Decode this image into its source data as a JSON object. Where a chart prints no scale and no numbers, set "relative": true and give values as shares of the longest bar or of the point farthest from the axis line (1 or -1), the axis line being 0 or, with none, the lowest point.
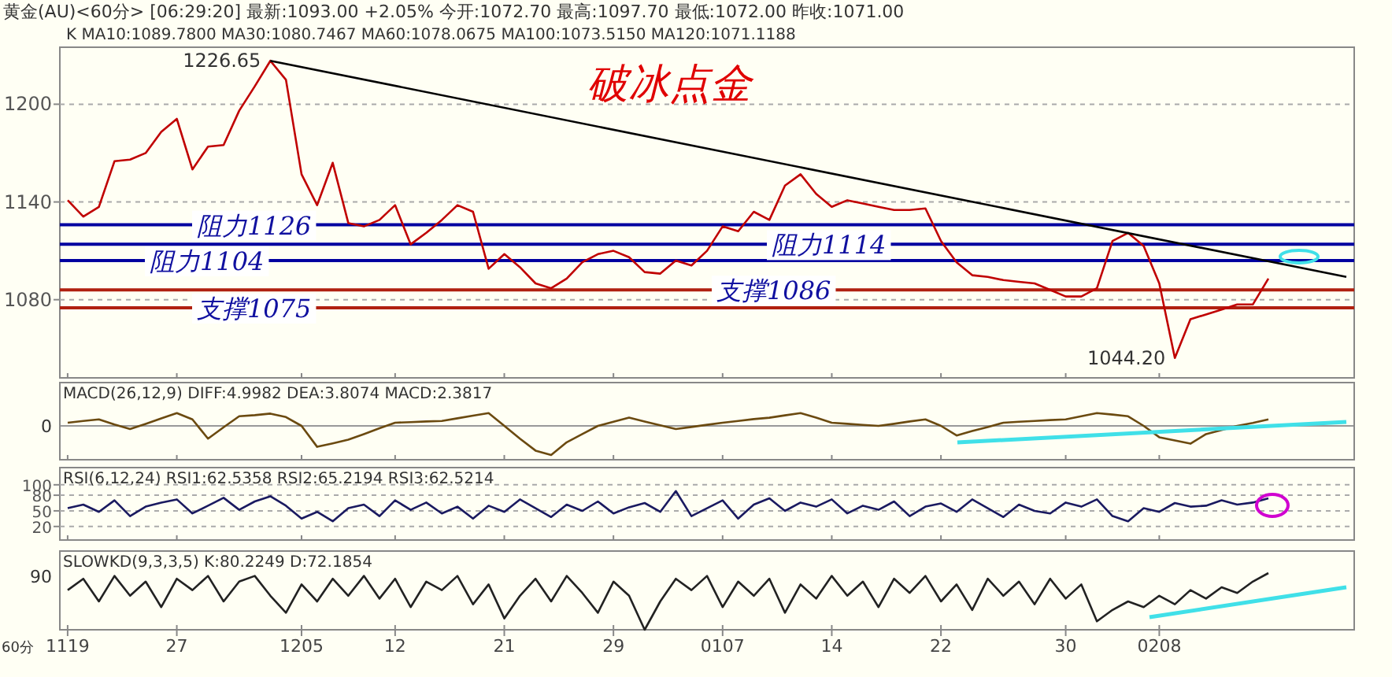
{
  "chart_data": [
    {
      "type": "line",
      "title": "破冰点金",
      "subtitle": "黄金(AU)<60分>     [06:29:20] 最新:1093.00 +2.05%  今开:1072.70  最高:1097.70  最低:1072.00  昨收:1071.00",
      "annotations": [
        "K  MA10:1089.7800  MA30:1080.7467  MA60:1078.0675  MA100:1073.5150  MA120:1071.1188",
        "1226.65",
        "1044.20"
      ],
      "categories": [
        "1119",
        null,
        null,
        null,
        null,
        null,
        null,
        "27",
        null,
        null,
        null,
        null,
        null,
        null,
        null,
        "1205",
        null,
        null,
        null,
        null,
        null,
        "12",
        null,
        null,
        null,
        null,
        null,
        null,
        "21",
        null,
        null,
        null,
        null,
        null,
        null,
        "29",
        null,
        null,
        null,
        null,
        null,
        null,
        "0107",
        null,
        null,
        null,
        null,
        null,
        null,
        "14",
        null,
        null,
        null,
        null,
        null,
        null,
        "22",
        null,
        null,
        null,
        null,
        null,
        null,
        null,
        "30",
        null,
        null,
        null,
        null,
        null,
        "0208",
        null,
        null,
        null,
        null,
        null,
        null,
        null,
        null,
        null,
        null,
        null,
        null
      ],
      "ylim": [
        1032,
        1235
      ],
      "yticks": [
        1080,
        1140,
        1200
      ],
      "grid": "y",
      "tick_labels": "y",
      "series": [
        {
          "color": "#c00000",
          "values": [
            1141,
            1131,
            1137,
            1165,
            1166,
            1170,
            1183,
            1191,
            1160,
            1174,
            1175,
            1196,
            1211,
            1226.65,
            1215,
            1157,
            1138,
            1164,
            1127,
            1125,
            1129,
            1138,
            1114,
            1121,
            1129,
            1138,
            1134,
            1099,
            1108,
            1100,
            1090,
            1087,
            1093,
            1103,
            1108,
            1110,
            1106,
            1097,
            1096,
            1104,
            1101,
            1110,
            1125,
            1122,
            1134,
            1129,
            1150,
            1157,
            1145,
            1137,
            1141,
            1139,
            1137,
            1135,
            1135,
            1136,
            1116,
            1103,
            1095,
            1094,
            1092,
            1091,
            1090,
            1086,
            1082,
            1082,
            1087,
            1116,
            1121,
            1113,
            1090,
            1044.2,
            1068,
            1071,
            1074,
            1077,
            1077,
            1093,
            null,
            null,
            null,
            null,
            null
          ]
        },
        {
          "color": "#000000",
          "values": [
            null,
            null,
            null,
            null,
            null,
            null,
            null,
            null,
            null,
            null,
            null,
            null,
            null,
            1226.65,
            null,
            null,
            null,
            null,
            null,
            null,
            null,
            null,
            null,
            null,
            null,
            null,
            null,
            null,
            null,
            null,
            null,
            null,
            null,
            null,
            null,
            null,
            null,
            null,
            null,
            null,
            null,
            null,
            null,
            null,
            null,
            null,
            null,
            null,
            null,
            null,
            null,
            null,
            null,
            null,
            null,
            null,
            null,
            null,
            null,
            null,
            null,
            null,
            null,
            null,
            null,
            null,
            null,
            null,
            null,
            null,
            null,
            null,
            null,
            null,
            null,
            null,
            null,
            null,
            null,
            null,
            null,
            null,
            1094
          ]
        }
      ],
      "ref_lines": [
        {
          "axis": "y",
          "value": 1126,
          "label": "阻力1126",
          "color": "#0000a0"
        },
        {
          "axis": "y",
          "value": 1104,
          "label": "阻力1104",
          "color": "#0000a0"
        },
        {
          "axis": "y",
          "value": 1075,
          "label": "支撑1075",
          "color": "#b02010"
        },
        {
          "axis": "y",
          "value": 1114,
          "label": "阻力1114",
          "color": "#0000a0"
        },
        {
          "axis": "y",
          "value": 1086,
          "label": "支撑1086",
          "color": "#b02010"
        }
      ]
    },
    {
      "type": "line",
      "title": "MACD(26,12,9)  DIFF:4.9982  DEA:3.8074  MACD:2.3817",
      "relative": true,
      "tick_labels": false,
      "annotations": [
        "0"
      ],
      "categories": [
        "1119",
        null,
        null,
        null,
        null,
        null,
        null,
        "27",
        null,
        null,
        null,
        null,
        null,
        null,
        null,
        "1205",
        null,
        null,
        null,
        null,
        null,
        "12",
        null,
        null,
        null,
        null,
        null,
        null,
        "21",
        null,
        null,
        null,
        null,
        null,
        null,
        "29",
        null,
        null,
        null,
        null,
        null,
        null,
        "0107",
        null,
        null,
        null,
        null,
        null,
        null,
        "14",
        null,
        null,
        null,
        null,
        null,
        null,
        "22",
        null,
        null,
        null,
        null,
        null,
        null,
        null,
        "30",
        null,
        null,
        null,
        null,
        null,
        "0208",
        null,
        null,
        null,
        null,
        null,
        null,
        null,
        null,
        null,
        null,
        null,
        null
      ],
      "series": [
        {
          "color": "#6b4a10",
          "values": [
            0.11,
            0.17,
            0.22,
            0.05,
            -0.11,
            0.07,
            0.26,
            0.44,
            0.22,
            -0.44,
            -0.05,
            0.33,
            0.37,
            0.42,
            0.3,
            0,
            -0.72,
            -0.6,
            -0.47,
            -0.28,
            -0.08,
            0.11,
            0.13,
            0.15,
            0.17,
            0.26,
            0.35,
            0.44,
            0,
            -0.44,
            -0.85,
            -1,
            -0.56,
            -0.28,
            0,
            0.14,
            0.28,
            0.15,
            0.02,
            -0.11,
            -0.04,
            0.04,
            0.11,
            0.17,
            0.23,
            0.28,
            0.36,
            0.44,
            0.28,
            0.11,
            0.07,
            0.03,
            0,
            0.07,
            0.15,
            0.22,
            0,
            -0.33,
            -0.18,
            -0.04,
            0.11,
            0.14,
            0.17,
            0.2,
            0.22,
            0.33,
            0.44,
            0.39,
            0.33,
            0,
            -0.39,
            -0.5,
            -0.61,
            -0.28,
            -0.14,
            0,
            0.1,
            0.22,
            null,
            null,
            null,
            null,
            null
          ]
        }
      ]
    },
    {
      "type": "line",
      "title": "RSI(6,12,24)  RSI1:62.5358  RSI2:65.2194  RSI3:62.5214",
      "ylim": [
        -6,
        133
      ],
      "yticks": [
        100,
        80,
        50,
        20
      ],
      "grid": "y",
      "tick_labels": "y",
      "categories": [
        "1119",
        null,
        null,
        null,
        null,
        null,
        null,
        "27",
        null,
        null,
        null,
        null,
        null,
        null,
        null,
        "1205",
        null,
        null,
        null,
        null,
        null,
        "12",
        null,
        null,
        null,
        null,
        null,
        null,
        "21",
        null,
        null,
        null,
        null,
        null,
        null,
        "29",
        null,
        null,
        null,
        null,
        null,
        null,
        "0107",
        null,
        null,
        null,
        null,
        null,
        null,
        "14",
        null,
        null,
        null,
        null,
        null,
        null,
        "22",
        null,
        null,
        null,
        null,
        null,
        null,
        null,
        "30",
        null,
        null,
        null,
        null,
        null,
        "0208",
        null,
        null,
        null,
        null,
        null,
        null,
        null,
        null,
        null,
        null,
        null,
        null
      ],
      "series": [
        {
          "color": "#1a1a60",
          "values": [
            55,
            62,
            48,
            70,
            40,
            58,
            66,
            72,
            45,
            60,
            75,
            52,
            68,
            78,
            60,
            35,
            48,
            30,
            55,
            62,
            40,
            70,
            52,
            66,
            45,
            58,
            35,
            60,
            48,
            72,
            55,
            38,
            62,
            50,
            68,
            45,
            57,
            65,
            48,
            88,
            40,
            55,
            70,
            35,
            62,
            74,
            50,
            66,
            58,
            72,
            45,
            60,
            52,
            68,
            40,
            58,
            64,
            48,
            72,
            55,
            38,
            62,
            50,
            45,
            66,
            58,
            72,
            40,
            30,
            55,
            48,
            65,
            58,
            60,
            70,
            62,
            66,
            74,
            null,
            null,
            null,
            null,
            null
          ]
        }
      ]
    },
    {
      "type": "line",
      "title": "SLOWKD(9,3,3,5)  K:80.2249  D:72.1854",
      "relative": true,
      "tick_labels": "x",
      "annotations": [
        "90",
        "60分"
      ],
      "categories": [
        "1119",
        null,
        null,
        null,
        null,
        null,
        null,
        "27",
        null,
        null,
        null,
        null,
        null,
        null,
        null,
        "1205",
        null,
        null,
        null,
        null,
        null,
        "12",
        null,
        null,
        null,
        null,
        null,
        null,
        "21",
        null,
        null,
        null,
        null,
        null,
        null,
        "29",
        null,
        null,
        null,
        null,
        null,
        null,
        "0107",
        null,
        null,
        null,
        null,
        null,
        null,
        "14",
        null,
        null,
        null,
        null,
        null,
        null,
        "22",
        null,
        null,
        null,
        null,
        null,
        null,
        null,
        "30",
        null,
        null,
        null,
        null,
        null,
        "0208",
        null,
        null,
        null,
        null,
        null,
        null,
        null,
        null,
        null,
        null,
        null,
        null
      ],
      "series": [
        {
          "color": "#222222",
          "values": [
            0.7,
            0.9,
            0.5,
            0.95,
            0.6,
            0.85,
            0.4,
            0.9,
            0.7,
            0.95,
            0.5,
            0.85,
            0.95,
            0.6,
            0.3,
            0.8,
            0.5,
            0.9,
            0.6,
            0.95,
            0.55,
            0.9,
            0.4,
            0.85,
            0.7,
            0.95,
            0.45,
            0.8,
            0.2,
            0.6,
            0.9,
            0.5,
            0.95,
            0.65,
            0.3,
            0.85,
            0.6,
            0,
            0.5,
            0.9,
            0.7,
            0.95,
            0.4,
            0.85,
            0.6,
            0.9,
            0.3,
            0.8,
            0.55,
            0.95,
            0.6,
            0.85,
            0.4,
            0.9,
            0.65,
            0.95,
            0.5,
            0.8,
            0.35,
            0.9,
            0.6,
            0.85,
            0.45,
            0.9,
            0.55,
            0.8,
            0.15,
            0.35,
            0.5,
            0.4,
            0.6,
            0.45,
            0.7,
            0.55,
            0.75,
            0.65,
            0.85,
            1.0,
            null,
            null,
            null,
            null,
            null
          ]
        }
      ]
    }
  ]
}
